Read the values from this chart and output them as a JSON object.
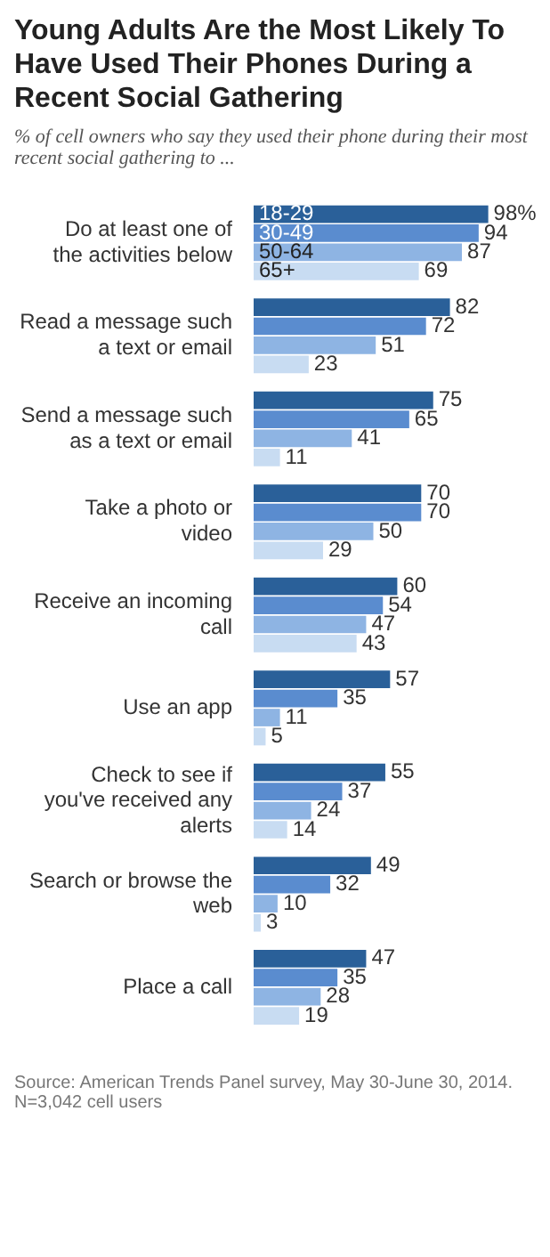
{
  "chart_data": {
    "type": "bar",
    "orientation": "horizontal",
    "title": "Young Adults Are the Most Likely To Have Used Their Phones During a Recent Social Gathering",
    "subtitle": "% of cell owners who say they used their phone during their most recent social gathering to ...",
    "categories": [
      "Do at least one of the activities below",
      "Read a message such a text or email",
      "Send a message such as a text or email",
      "Take a photo or video",
      "Receive an incoming call",
      "Use an app",
      "Check to see if you've received any alerts",
      "Search or browse the web",
      "Place a call"
    ],
    "series": [
      {
        "name": "18-29",
        "color": "#2a6099",
        "values": [
          98,
          82,
          75,
          70,
          60,
          57,
          55,
          49,
          47
        ],
        "value_labels": [
          "98%",
          "82",
          "75",
          "70",
          "60",
          "57",
          "55",
          "49",
          "47"
        ]
      },
      {
        "name": "30-49",
        "color": "#5a8ccf",
        "values": [
          94,
          72,
          65,
          70,
          54,
          35,
          37,
          32,
          35
        ],
        "value_labels": [
          "94",
          "72",
          "65",
          "70",
          "54",
          "35",
          "37",
          "32",
          "35"
        ]
      },
      {
        "name": "50-64",
        "color": "#8eb4e3",
        "values": [
          87,
          51,
          41,
          50,
          47,
          11,
          24,
          10,
          28
        ],
        "value_labels": [
          "87",
          "51",
          "41",
          "50",
          "47",
          "11",
          "24",
          "10",
          "28"
        ]
      },
      {
        "name": "65+",
        "color": "#c8dcf2",
        "values": [
          69,
          23,
          11,
          29,
          43,
          5,
          14,
          3,
          19
        ],
        "value_labels": [
          "69",
          "23",
          "11",
          "29",
          "43",
          "5",
          "14",
          "3",
          "19"
        ]
      }
    ],
    "xlim": [
      0,
      100
    ],
    "tick_labels": "y",
    "annotations": [
      "Source: American Trends Panel survey, May 30-June 30, 2014. N=3,042 cell users"
    ]
  }
}
